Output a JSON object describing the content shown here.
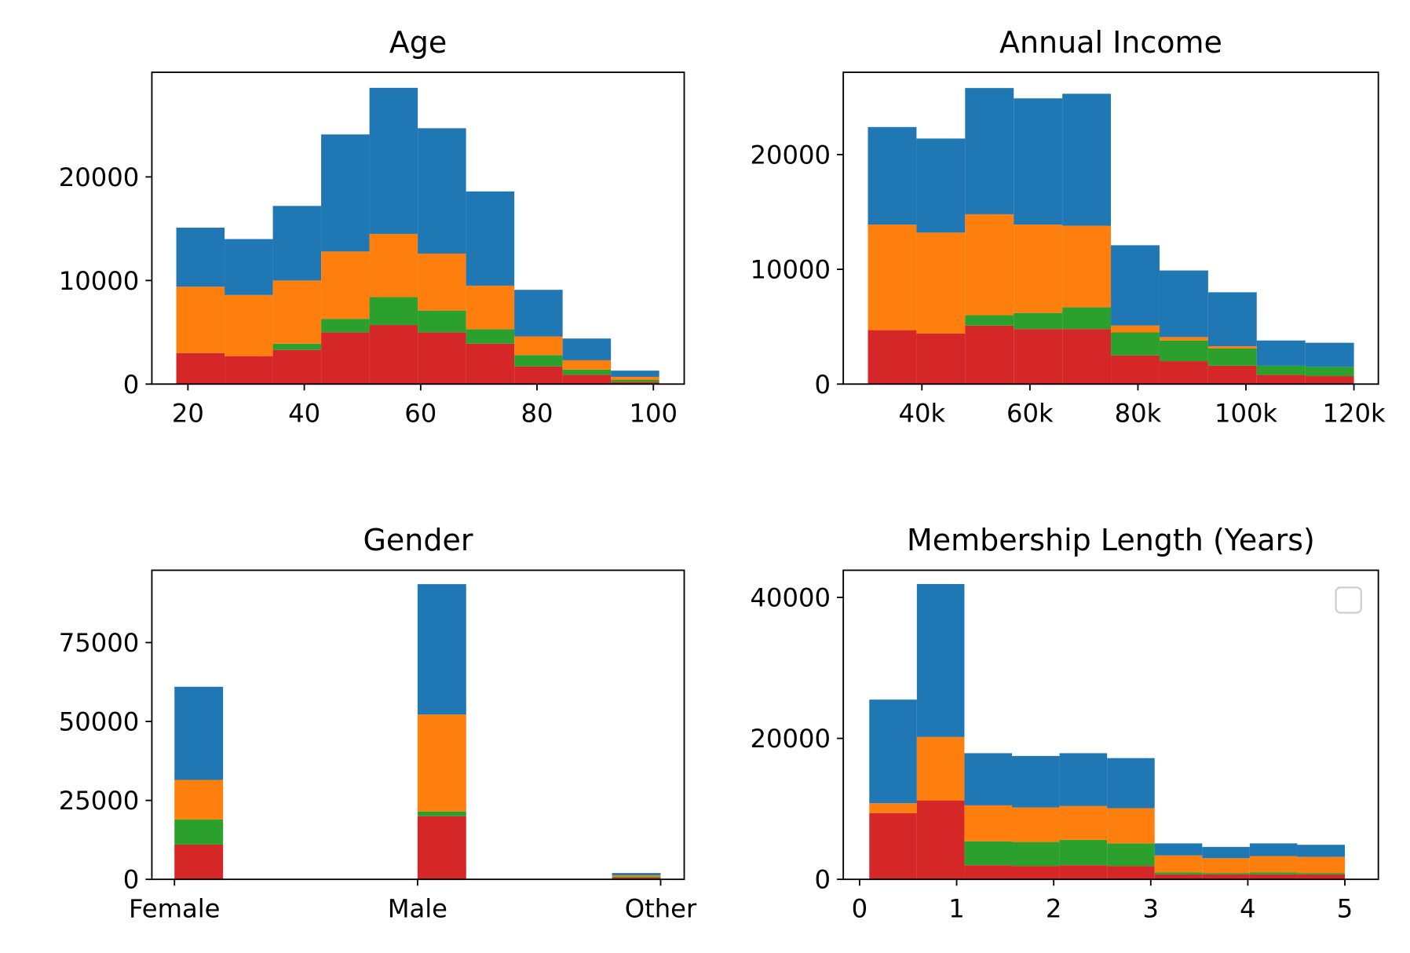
{
  "chart_data": [
    {
      "type": "histogram",
      "title": "Age",
      "bins": [
        18,
        26.3,
        34.6,
        42.9,
        51.2,
        59.5,
        67.8,
        76.1,
        84.4,
        92.7,
        101
      ],
      "series": [
        {
          "color": "#d62728",
          "values": [
            3000,
            2700,
            3300,
            5000,
            5700,
            5000,
            3900,
            1700,
            900,
            200
          ]
        },
        {
          "color": "#2ca02c",
          "values": [
            0,
            0,
            600,
            1300,
            2700,
            2100,
            1400,
            1100,
            500,
            200
          ]
        },
        {
          "color": "#ff7f0e",
          "values": [
            6400,
            5900,
            6100,
            6500,
            6100,
            5500,
            4200,
            1800,
            900,
            300
          ]
        },
        {
          "color": "#1f77b4",
          "values": [
            5700,
            5400,
            7200,
            11300,
            14100,
            12100,
            9100,
            4500,
            2100,
            600
          ]
        }
      ],
      "xlim": [
        13.8,
        105.3
      ],
      "ylim": [
        0,
        30100
      ],
      "xticks": [
        20,
        40,
        60,
        80,
        100
      ],
      "yticks": [
        0,
        10000,
        20000
      ]
    },
    {
      "type": "histogram",
      "title": "Annual Income",
      "bins": [
        30000,
        39000,
        48000,
        57000,
        66000,
        75000,
        84000,
        93000,
        102000,
        111000,
        120000
      ],
      "series": [
        {
          "color": "#d62728",
          "values": [
            4700,
            4400,
            5100,
            4800,
            4800,
            2500,
            2000,
            1600,
            800,
            700
          ]
        },
        {
          "color": "#2ca02c",
          "values": [
            0,
            0,
            900,
            1400,
            1900,
            2000,
            1800,
            1500,
            800,
            800
          ]
        },
        {
          "color": "#ff7f0e",
          "values": [
            9200,
            8800,
            8800,
            7700,
            7100,
            600,
            300,
            200,
            0,
            0
          ]
        },
        {
          "color": "#1f77b4",
          "values": [
            8500,
            8200,
            11000,
            11000,
            11500,
            7000,
            5800,
            4700,
            2200,
            2100
          ]
        }
      ],
      "xlim": [
        25440,
        124520
      ],
      "ylim": [
        0,
        27170
      ],
      "xticks": [
        {
          "value": 40000,
          "label": "40k"
        },
        {
          "value": 60000,
          "label": "60k"
        },
        {
          "value": 80000,
          "label": "80k"
        },
        {
          "value": 100000,
          "label": "100k"
        },
        {
          "value": 120000,
          "label": "120k"
        }
      ],
      "yticks": [
        0,
        10000,
        20000
      ]
    },
    {
      "type": "histogram",
      "title": "Gender",
      "bins": [
        0,
        0.2,
        0.4,
        0.6,
        0.8,
        1.0,
        1.2,
        1.4,
        1.6,
        1.8,
        2.0
      ],
      "series": [
        {
          "color": "#d62728",
          "values": [
            11000,
            0,
            0,
            0,
            0,
            20000,
            0,
            0,
            0,
            500
          ]
        },
        {
          "color": "#2ca02c",
          "values": [
            8000,
            0,
            0,
            0,
            0,
            1500,
            0,
            0,
            0,
            300
          ]
        },
        {
          "color": "#ff7f0e",
          "values": [
            12500,
            0,
            0,
            0,
            0,
            30700,
            0,
            0,
            0,
            500
          ]
        },
        {
          "color": "#1f77b4",
          "values": [
            29500,
            0,
            0,
            0,
            0,
            41300,
            0,
            0,
            0,
            700
          ]
        }
      ],
      "xlim": [
        -0.093,
        2.097
      ],
      "ylim": [
        0,
        97900
      ],
      "xticks": [
        {
          "value": 0,
          "label": "Female"
        },
        {
          "value": 1,
          "label": "Male"
        },
        {
          "value": 2,
          "label": "Other"
        }
      ],
      "yticks": [
        0,
        25000,
        50000,
        75000
      ]
    },
    {
      "type": "histogram",
      "title": "Membership Length (Years)",
      "bins": [
        0.1,
        0.59,
        1.08,
        1.57,
        2.06,
        2.55,
        3.04,
        3.53,
        4.02,
        4.51,
        5.0
      ],
      "series": [
        {
          "color": "#d62728",
          "values": [
            9400,
            11200,
            2000,
            1900,
            2000,
            1900,
            700,
            700,
            700,
            700
          ]
        },
        {
          "color": "#2ca02c",
          "values": [
            0,
            0,
            3400,
            3400,
            3600,
            3200,
            300,
            200,
            300,
            200
          ]
        },
        {
          "color": "#ff7f0e",
          "values": [
            1400,
            9000,
            5100,
            4900,
            4800,
            5000,
            2400,
            2100,
            2300,
            2300
          ]
        },
        {
          "color": "#1f77b4",
          "values": [
            14700,
            21700,
            7400,
            7300,
            7500,
            7100,
            1700,
            1600,
            1800,
            1700
          ]
        }
      ],
      "xlim": [
        -0.168,
        5.345
      ],
      "ylim": [
        0,
        43850
      ],
      "xticks": [
        0,
        1,
        2,
        3,
        4,
        5
      ],
      "yticks": [
        0,
        20000,
        40000
      ],
      "legend": "upper right"
    }
  ]
}
